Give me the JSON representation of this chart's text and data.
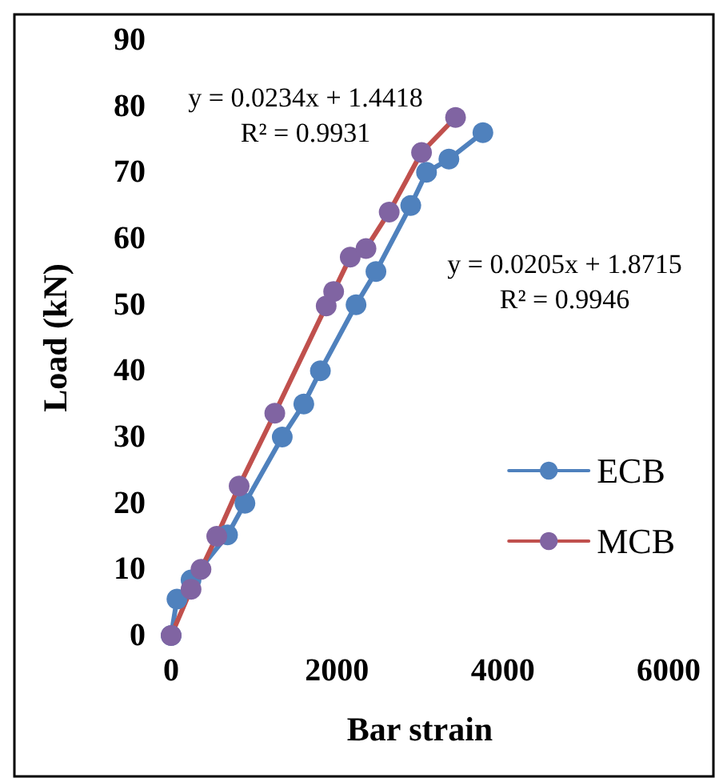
{
  "chart_data": {
    "type": "line",
    "xlabel": "Bar strain",
    "ylabel": "Load (kN)",
    "xlim": [
      0,
      6000
    ],
    "xticks": [
      0,
      2000,
      4000,
      6000
    ],
    "ylim": [
      0,
      90
    ],
    "yticks": [
      0,
      10,
      20,
      30,
      40,
      50,
      60,
      70,
      80,
      90
    ],
    "grid": false,
    "legend": "right",
    "marker": "circle",
    "line_style": "solid",
    "annotations": [
      "y = 0.0234x + 1.4418\nR² = 0.9931",
      "y = 0.0205x + 1.8715\nR² = 0.9946"
    ],
    "series": [
      {
        "name": "ECB",
        "color": "#4f81bd",
        "x": [
          0,
          70,
          240,
          680,
          890,
          1340,
          1600,
          1800,
          2230,
          2470,
          2890,
          3080,
          3350,
          3760
        ],
        "values": [
          0,
          5.5,
          8.4,
          15.2,
          20,
          30,
          35,
          40,
          50,
          55,
          65,
          70,
          72,
          76
        ]
      },
      {
        "name": "MCB",
        "color": "#c0504d",
        "x": [
          0,
          240,
          360,
          550,
          820,
          1250,
          1870,
          1960,
          2160,
          2350,
          2630,
          3020,
          3430
        ],
        "values": [
          0,
          7,
          10,
          15,
          22.6,
          33.6,
          49.8,
          52,
          57.2,
          58.5,
          64,
          73,
          78.3
        ]
      }
    ]
  }
}
